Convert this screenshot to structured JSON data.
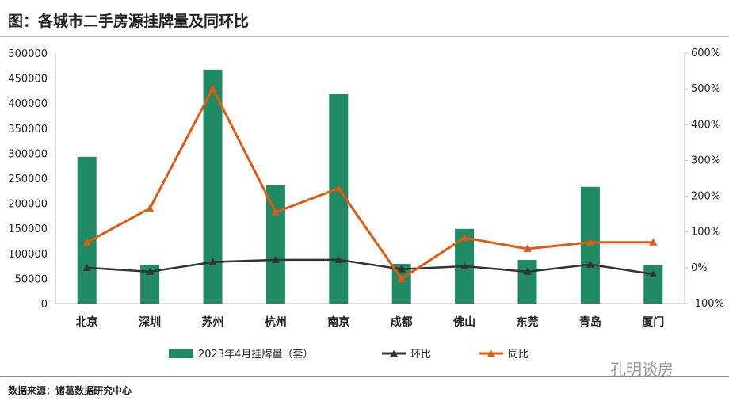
{
  "title": "图：各城市二手房源挂牌量及同环比",
  "source": "数据来源：诸葛数据研究中心",
  "watermark": "孔明谈房",
  "chart_data": {
    "type": "bar",
    "categories": [
      "北京",
      "深圳",
      "苏州",
      "杭州",
      "南京",
      "成都",
      "佛山",
      "东莞",
      "青岛",
      "厦门"
    ],
    "series": [
      {
        "name": "2023年4月挂牌量（套）",
        "type": "bar",
        "axis": "left",
        "color": "#1f8a63",
        "values": [
          293000,
          77000,
          467000,
          236000,
          418000,
          79000,
          149000,
          87000,
          233000,
          76000
        ]
      },
      {
        "name": "环比",
        "type": "line",
        "axis": "right",
        "color": "#333333",
        "values": [
          0,
          -11,
          16,
          22,
          22,
          -4,
          4,
          -11,
          9,
          -18
        ]
      },
      {
        "name": "同比",
        "type": "line",
        "axis": "right",
        "color": "#e05a10",
        "values": [
          71,
          166,
          501,
          155,
          222,
          -31,
          84,
          53,
          71,
          71
        ]
      }
    ],
    "yleft": {
      "range": [
        0,
        500000
      ],
      "ticks": [
        "0",
        "50000",
        "100000",
        "150000",
        "200000",
        "250000",
        "300000",
        "350000",
        "400000",
        "450000",
        "500000"
      ]
    },
    "yright": {
      "range": [
        -100,
        600
      ],
      "unit": "%",
      "ticks": [
        "-100%",
        "0%",
        "100%",
        "200%",
        "300%",
        "400%",
        "500%",
        "600%"
      ]
    },
    "legend": "bottom",
    "grid": false
  }
}
